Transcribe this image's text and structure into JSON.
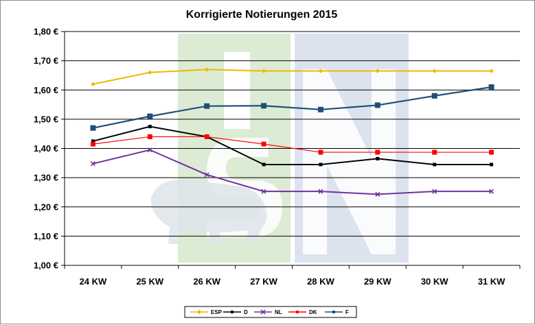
{
  "chart_data": {
    "type": "line",
    "title": "Korrigierte Notierungen 2015",
    "categories": [
      "24 KW",
      "25 KW",
      "26 KW",
      "27 KW",
      "28 KW",
      "29 KW",
      "30 KW",
      "31 KW"
    ],
    "ylim": [
      1.0,
      1.8
    ],
    "yticks": [
      1.0,
      1.1,
      1.2,
      1.3,
      1.4,
      1.5,
      1.6,
      1.7,
      1.8
    ],
    "ytick_labels": [
      "1,00 €",
      "1,10 €",
      "1,20 €",
      "1,30 €",
      "1,40 €",
      "1,50 €",
      "1,60 €",
      "1,70 €",
      "1,80 €"
    ],
    "grid": "horizontal",
    "legend_position": "bottom",
    "series": [
      {
        "name": "ESP",
        "color": "#f0b800",
        "marker": "diamond",
        "values": [
          1.62,
          1.66,
          1.67,
          1.665,
          1.665,
          1.665,
          1.665,
          1.665
        ]
      },
      {
        "name": "D",
        "color": "#000000",
        "marker": "square",
        "values": [
          1.425,
          1.475,
          1.44,
          1.345,
          1.345,
          1.365,
          1.345,
          1.345
        ]
      },
      {
        "name": "NL",
        "color": "#7030a0",
        "marker": "cross",
        "values": [
          1.348,
          1.395,
          1.31,
          1.253,
          1.253,
          1.243,
          1.253,
          1.253
        ]
      },
      {
        "name": "DK",
        "color": "#ff0000",
        "marker": "square",
        "values": [
          1.415,
          1.44,
          1.44,
          1.415,
          1.387,
          1.387,
          1.387,
          1.387
        ]
      },
      {
        "name": "F",
        "color": "#1f4e79",
        "marker": "square",
        "values": [
          1.47,
          1.51,
          1.545,
          1.546,
          1.533,
          1.548,
          1.58,
          1.61
        ]
      }
    ]
  },
  "watermark": {
    "colors": {
      "green": "#dcebd4",
      "blue": "#dce3ee"
    }
  }
}
